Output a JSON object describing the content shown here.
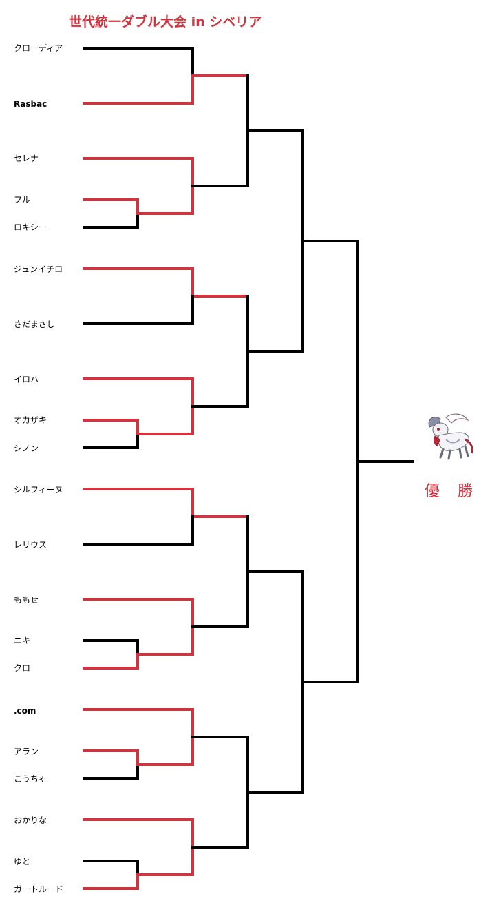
{
  "title": "世代統一ダブル大会 in シベリア",
  "champion_label": "優　勝",
  "champion_icon": "absol-sprite-icon",
  "colors": {
    "winner_path": "#d0343f",
    "bracket_line": "#000000",
    "title": "#d0343f"
  },
  "entrants": [
    "クローディア",
    "Rasbac",
    "セレナ",
    "フル",
    "ロキシー",
    "ジュンイチロ",
    "さだまさし",
    "イロハ",
    "オカザキ",
    "シノン",
    "シルフィーヌ",
    "レリウス",
    "ももせ",
    "ニキ",
    "クロ",
    ".com",
    "アラン",
    "こうちゃ",
    "おかりな",
    "ゆと",
    "ガートルード"
  ]
}
